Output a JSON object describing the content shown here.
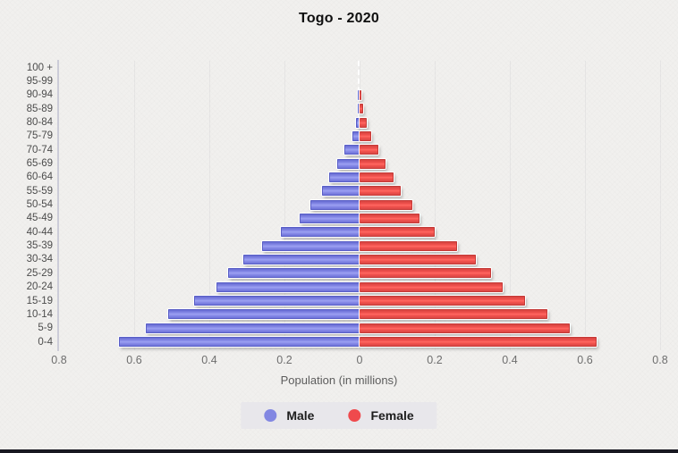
{
  "title": "Togo - 2020",
  "x_axis": {
    "title": "Population (in millions)",
    "ticks": [
      "0.8",
      "0.6",
      "0.4",
      "0.2",
      "0",
      "0.2",
      "0.4",
      "0.6",
      "0.8"
    ]
  },
  "legend": {
    "male_label": "Male",
    "female_label": "Female"
  },
  "colors": {
    "male": "#8287e2",
    "female": "#ef4a4d",
    "background": "#f1f0ee",
    "legend_background": "#e8e7eb",
    "axis_text": "#6e6e6e",
    "age_label_text": "#4c4c4c",
    "bottom_strip": "#181821"
  },
  "chart_data": {
    "type": "bar",
    "subtype": "population-pyramid",
    "title": "Togo - 2020",
    "xlabel": "Population (in millions)",
    "ylabel": "",
    "x_range_each_side": [
      0,
      0.8
    ],
    "grid": "faint-vertical-every-0.2",
    "legend_position": "bottom-center",
    "units": "millions",
    "categories": [
      "100 +",
      "95-99",
      "90-94",
      "85-89",
      "80-84",
      "75-79",
      "70-74",
      "65-69",
      "60-64",
      "55-59",
      "50-54",
      "45-49",
      "40-44",
      "35-39",
      "30-34",
      "25-29",
      "20-24",
      "15-19",
      "10-14",
      "5-9",
      "0-4"
    ],
    "series": [
      {
        "name": "Male",
        "side": "left",
        "color": "#8287e2",
        "values": [
          0,
          0,
          0.001,
          0.005,
          0.01,
          0.02,
          0.04,
          0.06,
          0.08,
          0.1,
          0.13,
          0.16,
          0.21,
          0.26,
          0.31,
          0.35,
          0.38,
          0.44,
          0.51,
          0.57,
          0.64
        ]
      },
      {
        "name": "Female",
        "side": "right",
        "color": "#ef4a4d",
        "values": [
          0,
          0,
          0.002,
          0.01,
          0.02,
          0.03,
          0.05,
          0.07,
          0.09,
          0.11,
          0.14,
          0.16,
          0.2,
          0.26,
          0.31,
          0.35,
          0.38,
          0.44,
          0.5,
          0.56,
          0.63
        ]
      }
    ]
  }
}
